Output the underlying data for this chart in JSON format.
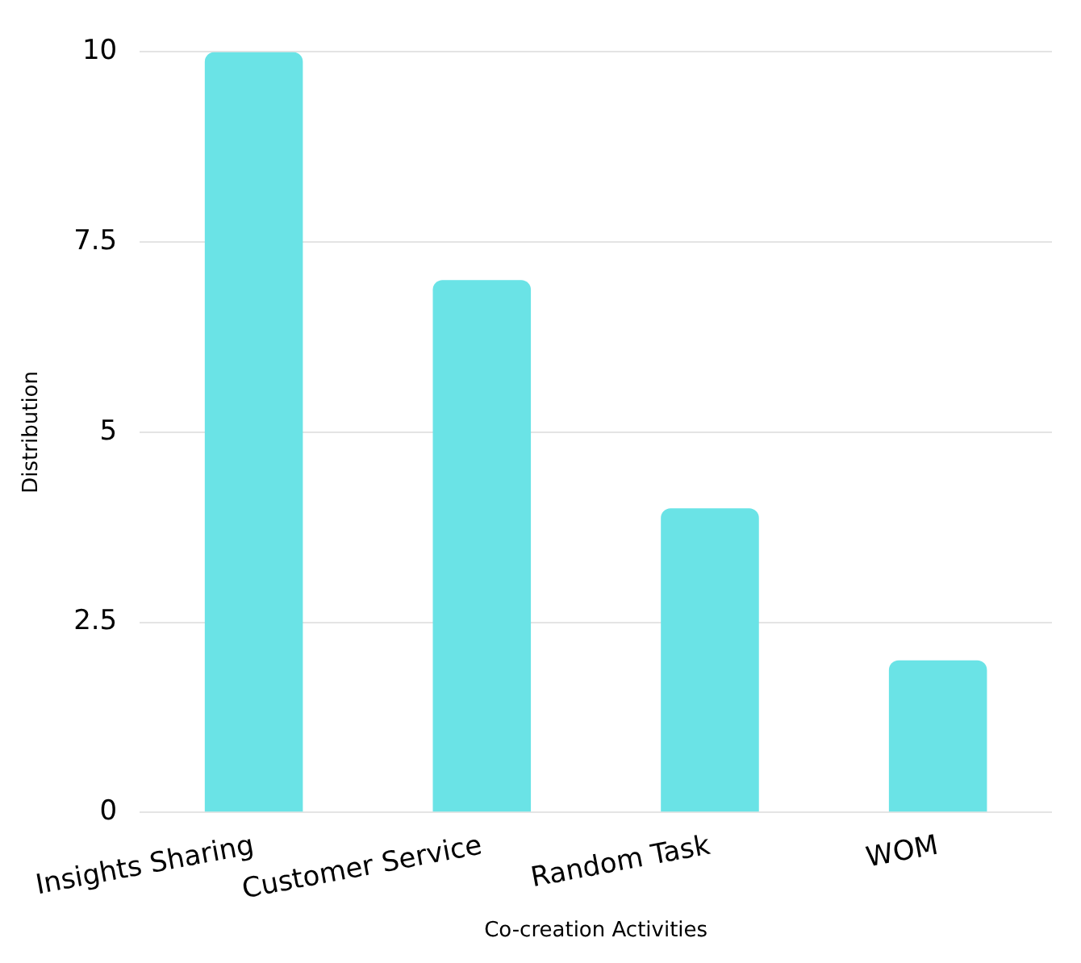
{
  "chart_data": {
    "type": "bar",
    "xlabel": "Co-creation Activities",
    "ylabel": "Distribution",
    "categories": [
      "Insights Sharing",
      "Customer Service",
      "Random Task",
      "WOM"
    ],
    "values": [
      10,
      7,
      4,
      2
    ],
    "color": "#6ae3e6",
    "ylim": [
      0,
      10
    ],
    "yticks": [
      0,
      2.5,
      5,
      7.5,
      10
    ],
    "grid": "y",
    "legend": false
  }
}
